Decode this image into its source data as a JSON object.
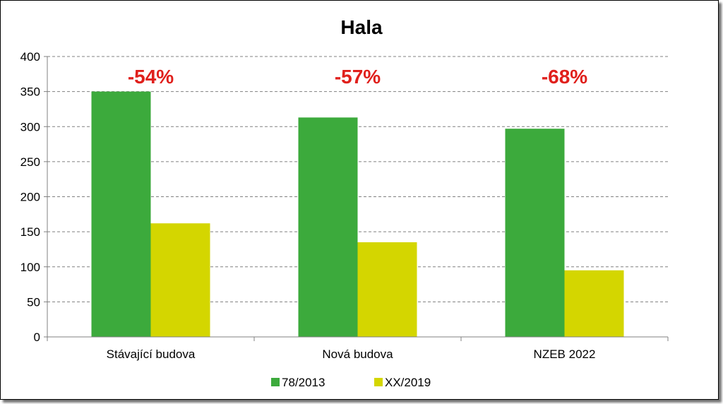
{
  "chart_data": {
    "type": "bar",
    "title": "Hala",
    "categories": [
      "Stávající budova",
      "Nová budova",
      "NZEB 2022"
    ],
    "series": [
      {
        "name": "78/2013",
        "values": [
          350,
          313,
          297
        ],
        "color": "#3caa3c"
      },
      {
        "name": "XX/2019",
        "values": [
          162,
          135,
          95
        ],
        "color": "#d4d600"
      }
    ],
    "annotations": [
      "-54%",
      "-57%",
      "-68%"
    ],
    "annotation_color": "#e0201c",
    "ylim": [
      0,
      400
    ],
    "yticks": [
      0,
      50,
      100,
      150,
      200,
      250,
      300,
      350,
      400
    ],
    "grid": true,
    "legend_position": "bottom"
  }
}
